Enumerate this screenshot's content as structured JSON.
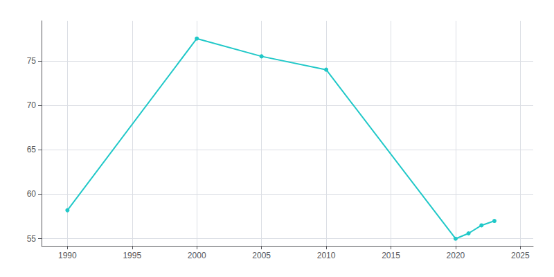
{
  "chart_data": {
    "type": "line",
    "x": [
      1990,
      2000,
      2005,
      2010,
      2020,
      2021,
      2022,
      2023
    ],
    "values": [
      58.2,
      77.5,
      75.5,
      74.0,
      55.0,
      55.6,
      56.5,
      57.0
    ],
    "color": "#20c8c8",
    "marker": "circle",
    "xlim": [
      1988,
      2026
    ],
    "xticks": [
      1990,
      1995,
      2000,
      2005,
      2010,
      2015,
      2020,
      2025
    ],
    "ylim": [
      54.2,
      79.5
    ],
    "yticks": [
      55,
      60,
      65,
      70,
      75
    ],
    "grid": true
  }
}
